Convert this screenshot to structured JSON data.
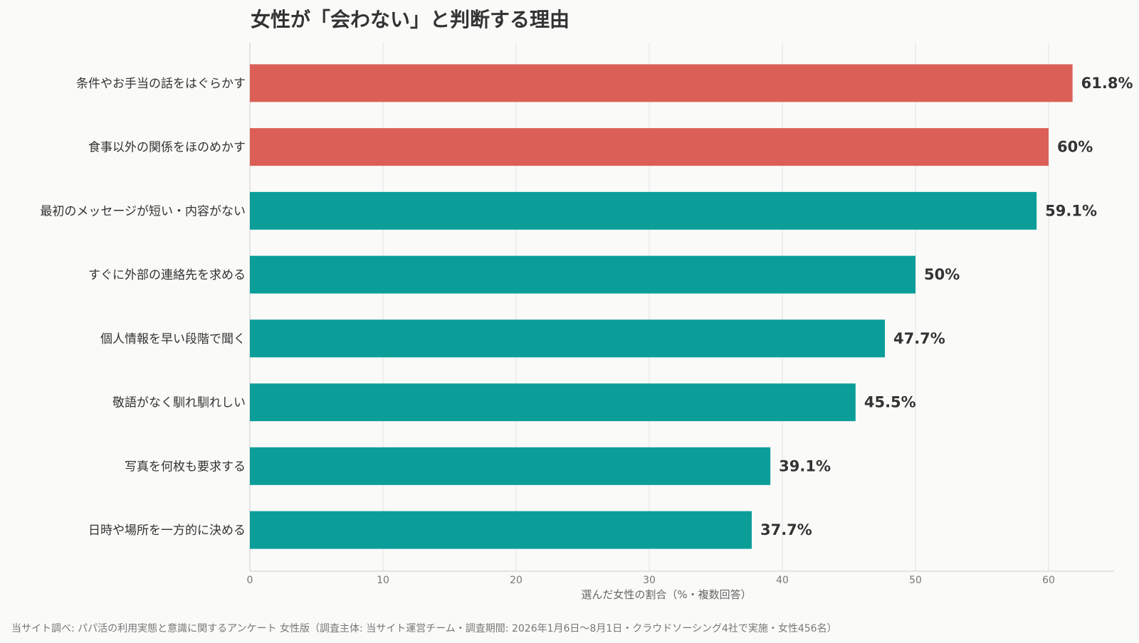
{
  "chart_data": {
    "type": "bar",
    "orientation": "horizontal",
    "title": "女性が「会わない」と判断する理由",
    "xlabel": "選んだ女性の割合（%・複数回答）",
    "ylabel": "",
    "xlim": [
      0,
      65
    ],
    "xticks": [
      0,
      10,
      20,
      30,
      40,
      50,
      60
    ],
    "grid": "vertical",
    "categories": [
      "条件やお手当の話をはぐらかす",
      "食事以外の関係をほのめかす",
      "最初のメッセージが短い・内容がない",
      "すぐに外部の連絡先を求める",
      "個人情報を早い段階で聞く",
      "敬語がなく馴れ馴れしい",
      "写真を何枚も要求する",
      "日時や場所を一方的に決める"
    ],
    "values": [
      61.8,
      60,
      59.1,
      50,
      47.7,
      45.5,
      39.1,
      37.7
    ],
    "value_labels": [
      "61.8%",
      "60%",
      "59.1%",
      "50%",
      "47.7%",
      "45.5%",
      "39.1%",
      "37.7%"
    ],
    "highlight_count": 2,
    "colors": {
      "highlight": "#db5f57",
      "default": "#0b9e99",
      "grid": "#e3e3e3",
      "axis": "#cccccc",
      "tick_text": "#777777",
      "label_text": "#333333",
      "background": "#fafaf8"
    }
  },
  "footnote": "当サイト調べ: パパ活の利用実態と意識に関するアンケート 女性版（調査主体: 当サイト運営チーム・調査期間: 2026年1月6日〜8月1日・クラウドソーシング4社で実施・女性456名）"
}
